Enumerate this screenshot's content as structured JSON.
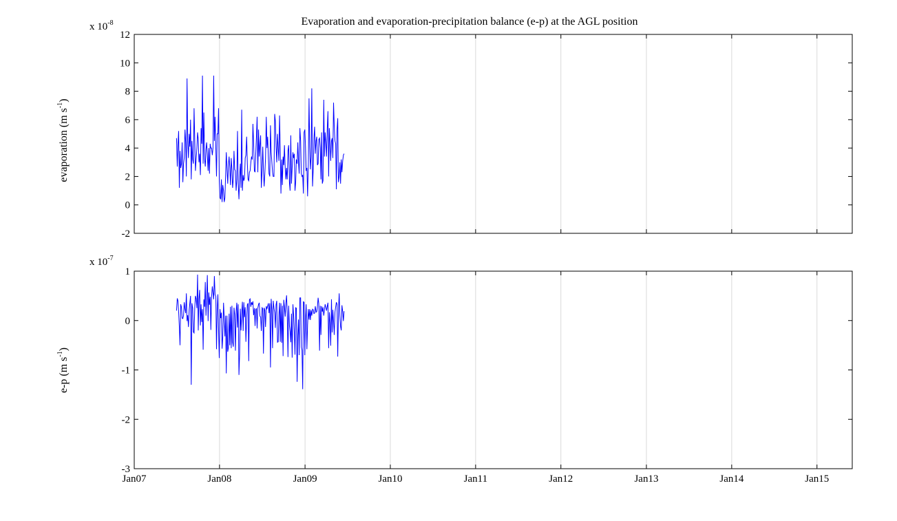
{
  "chart_data": [
    {
      "type": "line",
      "title": "Evaporation and evaporation-precipitation balance (e-p) at the AGL position",
      "ylabel": "evaporation  (m s-1)",
      "ylabel_parts": {
        "main": "evaporation  (m s",
        "sup": "-1",
        "end": ")"
      },
      "exponent_label": {
        "base": "x 10",
        "sup": "-8"
      },
      "ylim": [
        -2,
        12
      ],
      "yticks": [
        -2,
        0,
        2,
        4,
        6,
        8,
        10,
        12
      ],
      "ytick_labels": [
        "-2",
        "0",
        "2",
        "4",
        "6",
        "8",
        "10",
        "12"
      ],
      "xlim": [
        "2007-01-01",
        "2015-06-01"
      ],
      "x_grid": true,
      "line_color": "#0000ff",
      "series": [
        {
          "start": "2007-07-01",
          "step_days": 3,
          "values": [
            4.7,
            2.7,
            4.2,
            5.2,
            1.2,
            3.8,
            2.6,
            2.9,
            4.4,
            1.6,
            2.9,
            3.3,
            5.3,
            4.4,
            2.0,
            8.9,
            4.5,
            3.3,
            5.0,
            4.1,
            6.0,
            1.8,
            4.5,
            3.2,
            2.9,
            6.8,
            4.6,
            2.4,
            3.2,
            4.0,
            5.1,
            4.6,
            3.0,
            3.6,
            2.1,
            5.4,
            4.3,
            9.1,
            2.9,
            6.5,
            3.2,
            2.7,
            3.9,
            4.4,
            3.5,
            2.4,
            4.0,
            2.2,
            4.3,
            4.0,
            4.0,
            3.5,
            4.0,
            9.1,
            4.5,
            6.2,
            4.0,
            2.0,
            5.0,
            5.0,
            6.8,
            1.7,
            0.5,
            0.4,
            1.8,
            0.2,
            1.4,
            1.0,
            0.2,
            0.5,
            2.0,
            3.7,
            2.6,
            1.5,
            2.8,
            3.4,
            2.6,
            1.4,
            3.3,
            2.5,
            1.2,
            1.8,
            3.8,
            2.5,
            2.4,
            1.0,
            1.8,
            5.2,
            1.5,
            0.4,
            2.0,
            2.9,
            1.2,
            6.7,
            1.0,
            2.1,
            1.7,
            1.9,
            3.3,
            3.5,
            4.8,
            2.9,
            1.8,
            1.7,
            2.3,
            2.4,
            3.0,
            3.4,
            3.2,
            5.7,
            4.4,
            2.4,
            2.3,
            3.6,
            4.8,
            6.2,
            2.3,
            5.3,
            3.4,
            4.2,
            4.9,
            1.2,
            2.5,
            4.1,
            2.3,
            1.3,
            2.2,
            3.3,
            6.2,
            4.0,
            4.8,
            3.4,
            2.2,
            2.0,
            5.6,
            3.7,
            3.0,
            2.3,
            2.0,
            2.0,
            6.4,
            5.9,
            4.1,
            3.0,
            5.0,
            4.0,
            3.1,
            6.3,
            3.9,
            0.8,
            3.2,
            1.4,
            3.4,
            2.8,
            4.2,
            2.6,
            1.8,
            2.6,
            1.8,
            3.8,
            4.2,
            1.6,
            1.0,
            4.9,
            1.5,
            2.6,
            3.7,
            3.3,
            3.6,
            1.0,
            1.6,
            3.2,
            2.9,
            4.4,
            3.0,
            2.2,
            5.4,
            4.5,
            2.2,
            2.0,
            2.1,
            0.8,
            5.1,
            5.3,
            4.1,
            2.4,
            2.6,
            0.6,
            3.0,
            7.5,
            4.1,
            2.5,
            3.4,
            8.2,
            1.3,
            2.5,
            4.7,
            5.5,
            3.6,
            4.5,
            4.8,
            2.8,
            2.9,
            4.6,
            4.7,
            4.0,
            1.8,
            5.1,
            1.5,
            1.7,
            7.4,
            3.4,
            5.1,
            4.4,
            3.4,
            5.4,
            6.6,
            2.0,
            5.4,
            4.4,
            3.1,
            4.5,
            4.7,
            3.3,
            7.2,
            5.6,
            4.5,
            4.3,
            1.1,
            5.3,
            6.1,
            1.6,
            2.0,
            3.0,
            1.5,
            3.2,
            2.3,
            3.1,
            3.5,
            3.6
          ]
        }
      ]
    },
    {
      "type": "line",
      "title": "",
      "ylabel": "e-p (m s-1)",
      "ylabel_parts": {
        "main": "e-p (m s",
        "sup": "-1",
        "end": ")"
      },
      "exponent_label": {
        "base": "x 10",
        "sup": "-7"
      },
      "ylim": [
        -3,
        1
      ],
      "yticks": [
        -3,
        -2,
        -1,
        0,
        1
      ],
      "ytick_labels": [
        "-3",
        "-2",
        "-1",
        "0",
        "1"
      ],
      "xlim": [
        "2007-01-01",
        "2015-06-01"
      ],
      "xticks": [
        "2007-01-01",
        "2008-01-01",
        "2009-01-01",
        "2010-01-01",
        "2011-01-01",
        "2012-01-01",
        "2013-01-01",
        "2014-01-01",
        "2015-01-01"
      ],
      "xtick_labels": [
        "Jan07",
        "Jan08",
        "Jan09",
        "Jan10",
        "Jan11",
        "Jan12",
        "Jan13",
        "Jan14",
        "Jan15"
      ],
      "x_grid": true,
      "line_color": "#0000ff",
      "series": [
        {
          "start": "2007-07-01",
          "step_days": 3,
          "values": [
            0.2,
            0.45,
            0.4,
            0.17,
            -0.12,
            -0.5,
            0.33,
            0.27,
            0.05,
            0.04,
            0.1,
            0.37,
            0.23,
            0.15,
            0.55,
            -0.01,
            0.11,
            -0.13,
            0.22,
            0.36,
            0.5,
            -1.3,
            0.35,
            0.25,
            -0.23,
            -0.25,
            0.26,
            0.5,
            0.44,
            0.25,
            0.93,
            -0.2,
            0.44,
            0.62,
            -0.1,
            0.33,
            -0.03,
            0.23,
            -0.59,
            0.43,
            0.28,
            0.78,
            0.1,
            0.45,
            0.92,
            -0.01,
            0.57,
            0.32,
            0.48,
            -0.19,
            0.47,
            0.69,
            0.56,
            0.43,
            0.9,
            0.53,
            0.49,
            -0.58,
            0.23,
            0.53,
            -0.2,
            -0.76,
            0.23,
            0.05,
            0.16,
            -0.57,
            -0.33,
            0.36,
            0.05,
            -0.32,
            0.1,
            -1.07,
            0.1,
            -0.63,
            -0.55,
            0.14,
            -0.5,
            0.28,
            -0.56,
            0.3,
            -0.44,
            -0.53,
            0.26,
            0.12,
            -0.61,
            0.19,
            0.36,
            -0.14,
            0.33,
            -1.1,
            -0.67,
            0.24,
            -0.2,
            0.14,
            0.38,
            -0.21,
            0.37,
            0.07,
            0.27,
            -0.43,
            0.06,
            0.32,
            0.35,
            -0.82,
            0.42,
            0.44,
            0.28,
            0.37,
            0.32,
            0.39,
            0.11,
            0.25,
            -0.11,
            0.23,
            0.24,
            -0.16,
            0.25,
            0.33,
            0.36,
            0.09,
            0.07,
            -0.21,
            0.26,
            0.24,
            -0.67,
            0.26,
            0.21,
            -0.13,
            0.29,
            0.24,
            0.29,
            0.35,
            0.15,
            0.35,
            -0.95,
            0.44,
            0.23,
            -0.56,
            0.4,
            0.25,
            0.16,
            -0.15,
            0.32,
            0.4,
            -0.44,
            -0.43,
            0.11,
            0.36,
            -0.43,
            0.35,
            -0.45,
            0.3,
            -0.72,
            0.42,
            0.28,
            0.08,
            0.36,
            0.51,
            0.11,
            -0.74,
            0.3,
            -0.1,
            -0.22,
            -0.44,
            0.14,
            -0.75,
            0.33,
            0.11,
            -0.24,
            -0.69,
            0.26,
            0.25,
            -1.24,
            -0.3,
            0.02,
            -0.7,
            0.46,
            0.46,
            -0.54,
            -0.6,
            -1.39,
            0.38,
            0.37,
            -0.7,
            0.03,
            0.33,
            -0.58,
            -0.08,
            0.23,
            0.02,
            0.23,
            0.01,
            0.21,
            0.1,
            0.23,
            0.22,
            0.14,
            0.15,
            0.29,
            0.17,
            0.18,
            0.28,
            0.46,
            0.34,
            -0.61,
            0.3,
            -0.29,
            0.29,
            0.18,
            0.27,
            0.1,
            0.22,
            0.33,
            0.27,
            0.2,
            0.29,
            0.36,
            -0.56,
            0.17,
            -0.04,
            -0.51,
            0.43,
            -0.24,
            0.22,
            -0.01,
            -0.29,
            0.17,
            0.28,
            0.37,
            0.33,
            -0.73,
            0.18,
            0.55,
            0.1,
            -0.12,
            -0.2,
            0.31,
            0.18,
            -0.01,
            0.19
          ]
        }
      ]
    }
  ]
}
